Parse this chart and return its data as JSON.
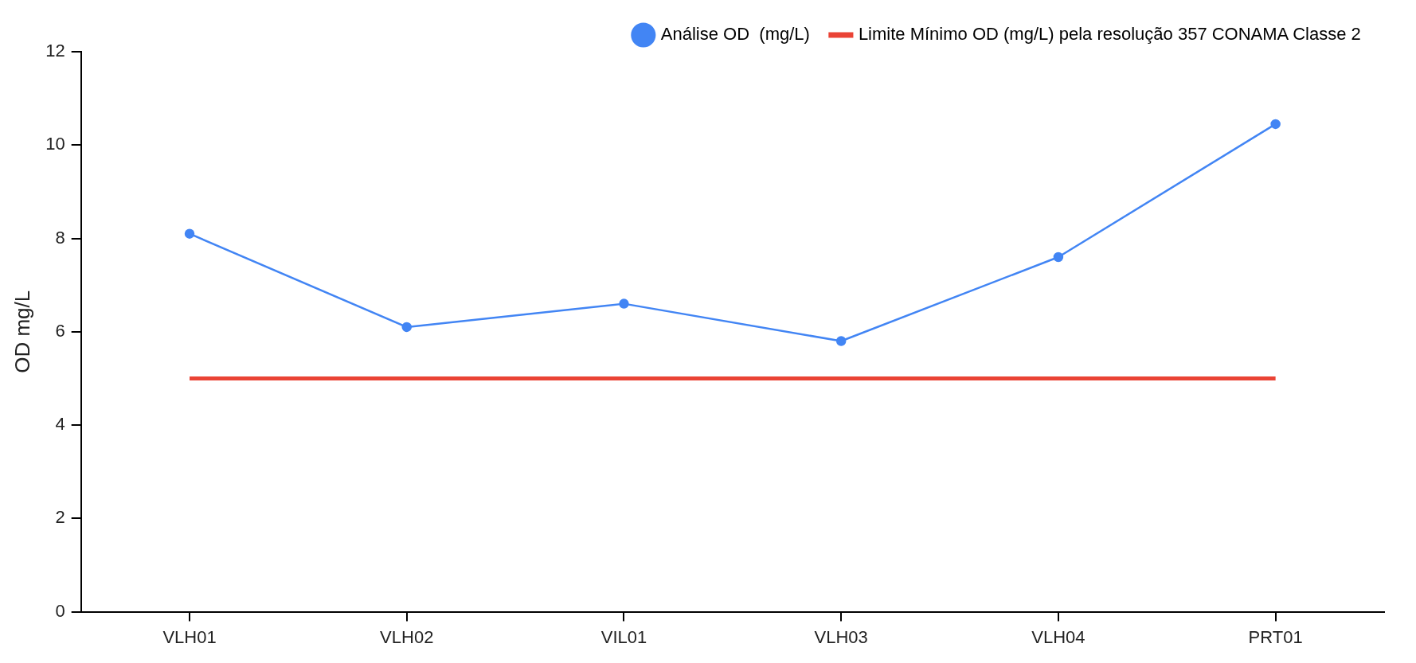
{
  "chart_data": {
    "type": "line",
    "ylabel": "OD mg/L",
    "categories": [
      "VLH01",
      "VLH02",
      "VIL01",
      "VLH03",
      "VLH04",
      "PRT01"
    ],
    "series": [
      {
        "name": "Análise OD  (mg/L)",
        "color": "#4285f4",
        "values": [
          8.1,
          6.1,
          6.6,
          5.8,
          7.6,
          10.45
        ],
        "marker": "circle"
      },
      {
        "name": "Limite Mínimo OD (mg/L) pela resolução 357 CONAMA Classe 2",
        "color": "#ea4335",
        "values": [
          5,
          5,
          5,
          5,
          5,
          5
        ],
        "marker": "none"
      }
    ],
    "ylim": [
      0,
      12
    ],
    "yticks": [
      0,
      2,
      4,
      6,
      8,
      10,
      12
    ],
    "grid": false,
    "legend": "top right"
  }
}
